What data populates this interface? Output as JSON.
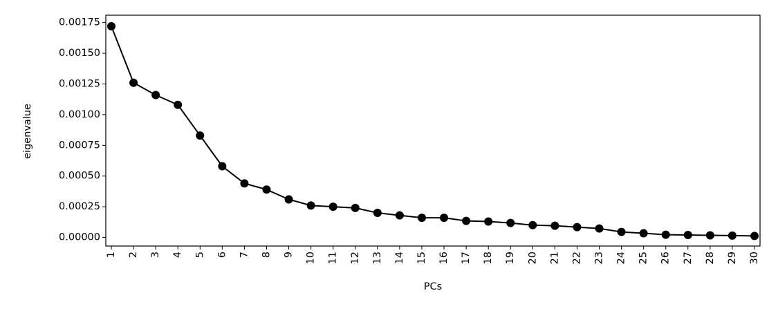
{
  "chart_data": {
    "type": "line",
    "xlabel": "PCs",
    "ylabel": "eigenvalue",
    "categories": [
      "1",
      "2",
      "3",
      "4",
      "5",
      "6",
      "7",
      "8",
      "9",
      "10",
      "11",
      "12",
      "13",
      "14",
      "15",
      "16",
      "17",
      "18",
      "19",
      "20",
      "21",
      "22",
      "23",
      "24",
      "25",
      "26",
      "27",
      "28",
      "29",
      "30"
    ],
    "series": [
      {
        "color": "#000000",
        "values": [
          0.00172,
          0.00126,
          0.00116,
          0.00108,
          0.00083,
          0.00058,
          0.00044,
          0.00039,
          0.00031,
          0.00026,
          0.00025,
          0.00024,
          0.0002,
          0.00018,
          0.00016,
          0.00016,
          0.000135,
          0.00013,
          0.000118,
          0.0001,
          9.5e-05,
          8.4e-05,
          7.3e-05,
          4.5e-05,
          3.4e-05,
          2.2e-05,
          2e-05,
          1.7e-05,
          1.5e-05,
          1.2e-05
        ]
      }
    ],
    "ylim": [
      -7e-05,
      0.00181
    ],
    "yticks": [
      {
        "value": 0,
        "label": "0.00000"
      },
      {
        "value": 0.00025,
        "label": "0.00025"
      },
      {
        "value": 0.0005,
        "label": "0.00050"
      },
      {
        "value": 0.00075,
        "label": "0.00075"
      },
      {
        "value": 0.001,
        "label": "0.00100"
      },
      {
        "value": 0.00125,
        "label": "0.00125"
      },
      {
        "value": 0.0015,
        "label": "0.00150"
      },
      {
        "value": 0.00175,
        "label": "0.00175"
      }
    ],
    "grid": false
  }
}
